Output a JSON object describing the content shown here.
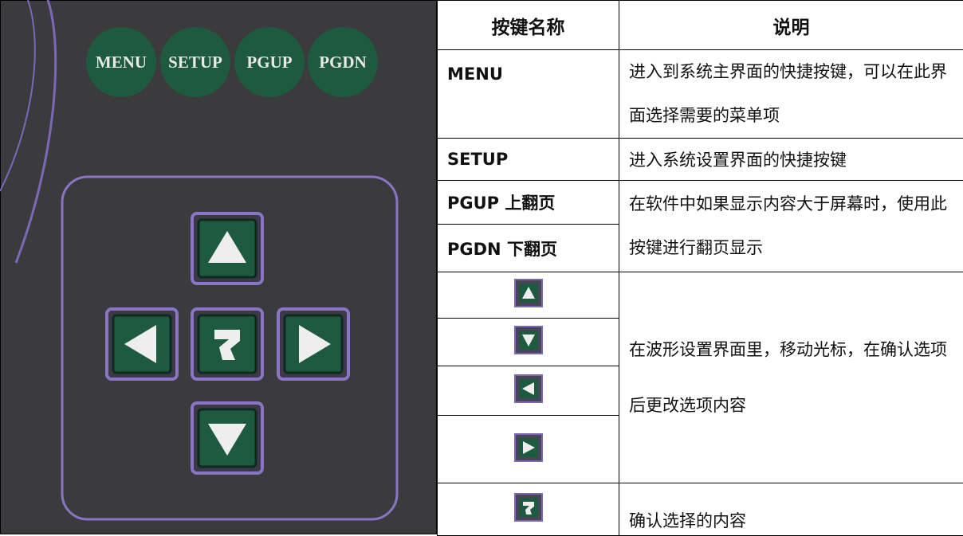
{
  "keypad": {
    "labels": [
      "MENU",
      "SETUP",
      "PGUP",
      "PGDN"
    ]
  },
  "table": {
    "header": [
      "按键名称",
      "说明"
    ],
    "rows": [
      {
        "key": "MENU",
        "description": "进入到系统主界面的快捷按键，可以在此界面选择需要的菜单项"
      },
      {
        "key": "SETUP",
        "description": "进入系统设置界面的快捷按键"
      },
      {
        "keys": [
          "PGUP 上翻页",
          "PGDN 下翻页"
        ],
        "description": "在软件中如果显示内容大于屏幕时，使用此按键进行翻页显示"
      },
      {
        "description": "在波形设置界面里，移动光标，在确认选项后更改选项内容"
      },
      {
        "description": "确认选择的内容"
      }
    ]
  }
}
